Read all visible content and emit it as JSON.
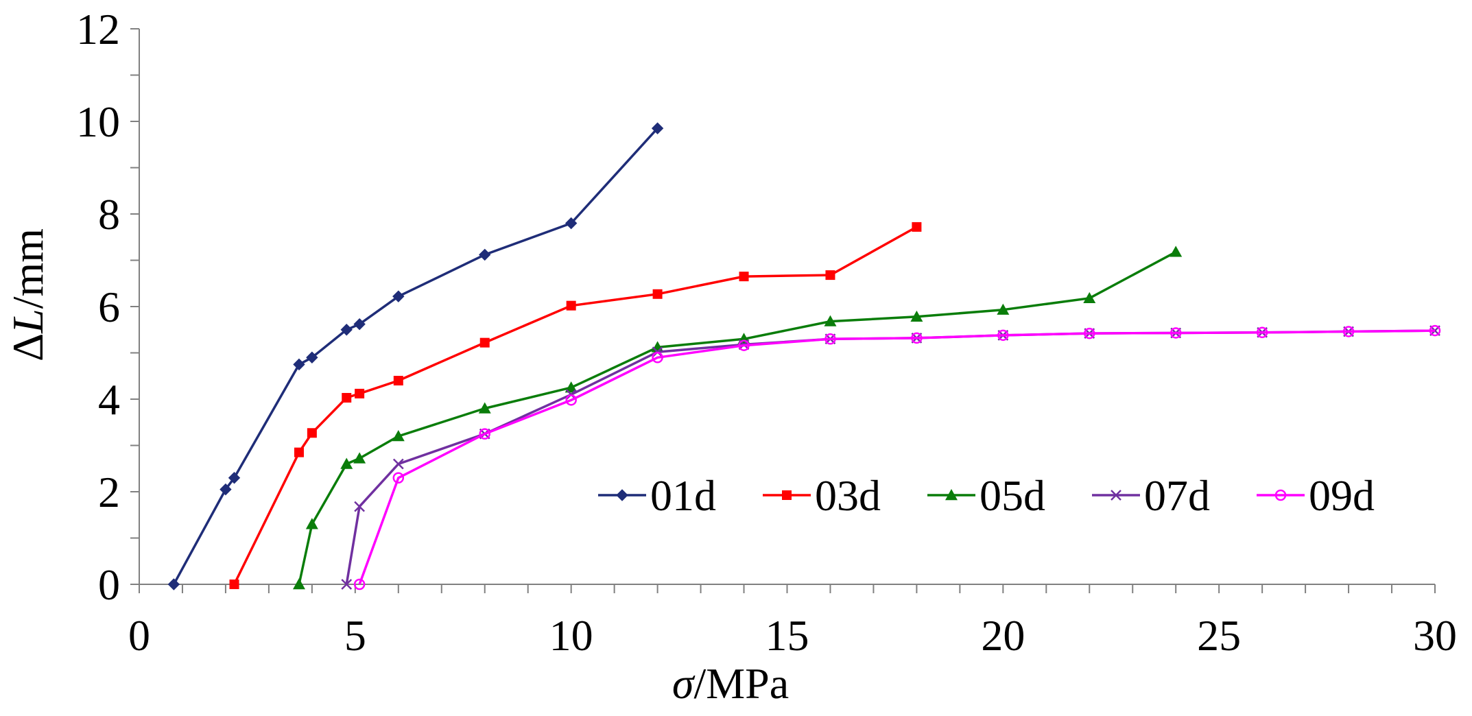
{
  "chart_data": {
    "type": "line",
    "title": "",
    "xlabel": {
      "symbol": "σ",
      "unit": "/MPa"
    },
    "ylabel": {
      "symbol": "ΔL",
      "prefix": "Δ",
      "var": "L",
      "unit": "/mm"
    },
    "xlim": [
      0,
      30
    ],
    "ylim": [
      0,
      12
    ],
    "xticks": [
      0,
      5,
      10,
      15,
      20,
      25,
      30
    ],
    "yticks": [
      0,
      2,
      4,
      6,
      8,
      10,
      12
    ],
    "x_minor_step": 1,
    "y_minor_step": 1,
    "grid": false,
    "legend_position": "lower-right",
    "series": [
      {
        "name": "01d",
        "color": "#1f2d78",
        "marker": "diamond",
        "x": [
          0.8,
          2.0,
          2.2,
          3.7,
          4.0,
          4.8,
          5.1,
          6.0,
          8.0,
          10.0,
          12.0
        ],
        "y": [
          0.0,
          2.05,
          2.3,
          4.75,
          4.9,
          5.5,
          5.62,
          6.22,
          7.12,
          7.8,
          9.85
        ]
      },
      {
        "name": "03d",
        "color": "#ff0000",
        "marker": "square",
        "x": [
          2.2,
          3.7,
          4.0,
          4.8,
          5.1,
          6.0,
          8.0,
          10.0,
          12.0,
          14.0,
          16.0,
          18.0
        ],
        "y": [
          0.0,
          2.85,
          3.27,
          4.03,
          4.12,
          4.4,
          5.22,
          6.02,
          6.27,
          6.65,
          6.68,
          7.72
        ]
      },
      {
        "name": "05d",
        "color": "#0a7d0a",
        "marker": "triangle",
        "x": [
          3.7,
          4.0,
          4.8,
          5.1,
          6.0,
          8.0,
          10.0,
          12.0,
          14.0,
          16.0,
          18.0,
          20.0,
          22.0,
          24.0
        ],
        "y": [
          0.0,
          1.3,
          2.6,
          2.72,
          3.2,
          3.8,
          4.25,
          5.12,
          5.3,
          5.68,
          5.78,
          5.93,
          6.18,
          7.18
        ]
      },
      {
        "name": "07d",
        "color": "#7030a0",
        "marker": "x",
        "x": [
          4.8,
          5.1,
          6.0,
          8.0,
          10.0,
          12.0,
          14.0,
          16.0,
          18.0,
          20.0,
          22.0,
          24.0,
          26.0,
          28.0,
          30.0
        ],
        "y": [
          0.0,
          1.68,
          2.6,
          3.25,
          4.1,
          5.02,
          5.18,
          5.3,
          5.32,
          5.38,
          5.42,
          5.43,
          5.44,
          5.46,
          5.48
        ]
      },
      {
        "name": "09d",
        "color": "#ff00ff",
        "marker": "circle",
        "x": [
          5.1,
          6.0,
          8.0,
          10.0,
          12.0,
          14.0,
          16.0,
          18.0,
          20.0,
          22.0,
          24.0,
          26.0,
          28.0,
          30.0
        ],
        "y": [
          0.0,
          2.3,
          3.25,
          3.98,
          4.9,
          5.16,
          5.3,
          5.32,
          5.38,
          5.42,
          5.43,
          5.44,
          5.46,
          5.48
        ]
      }
    ]
  }
}
